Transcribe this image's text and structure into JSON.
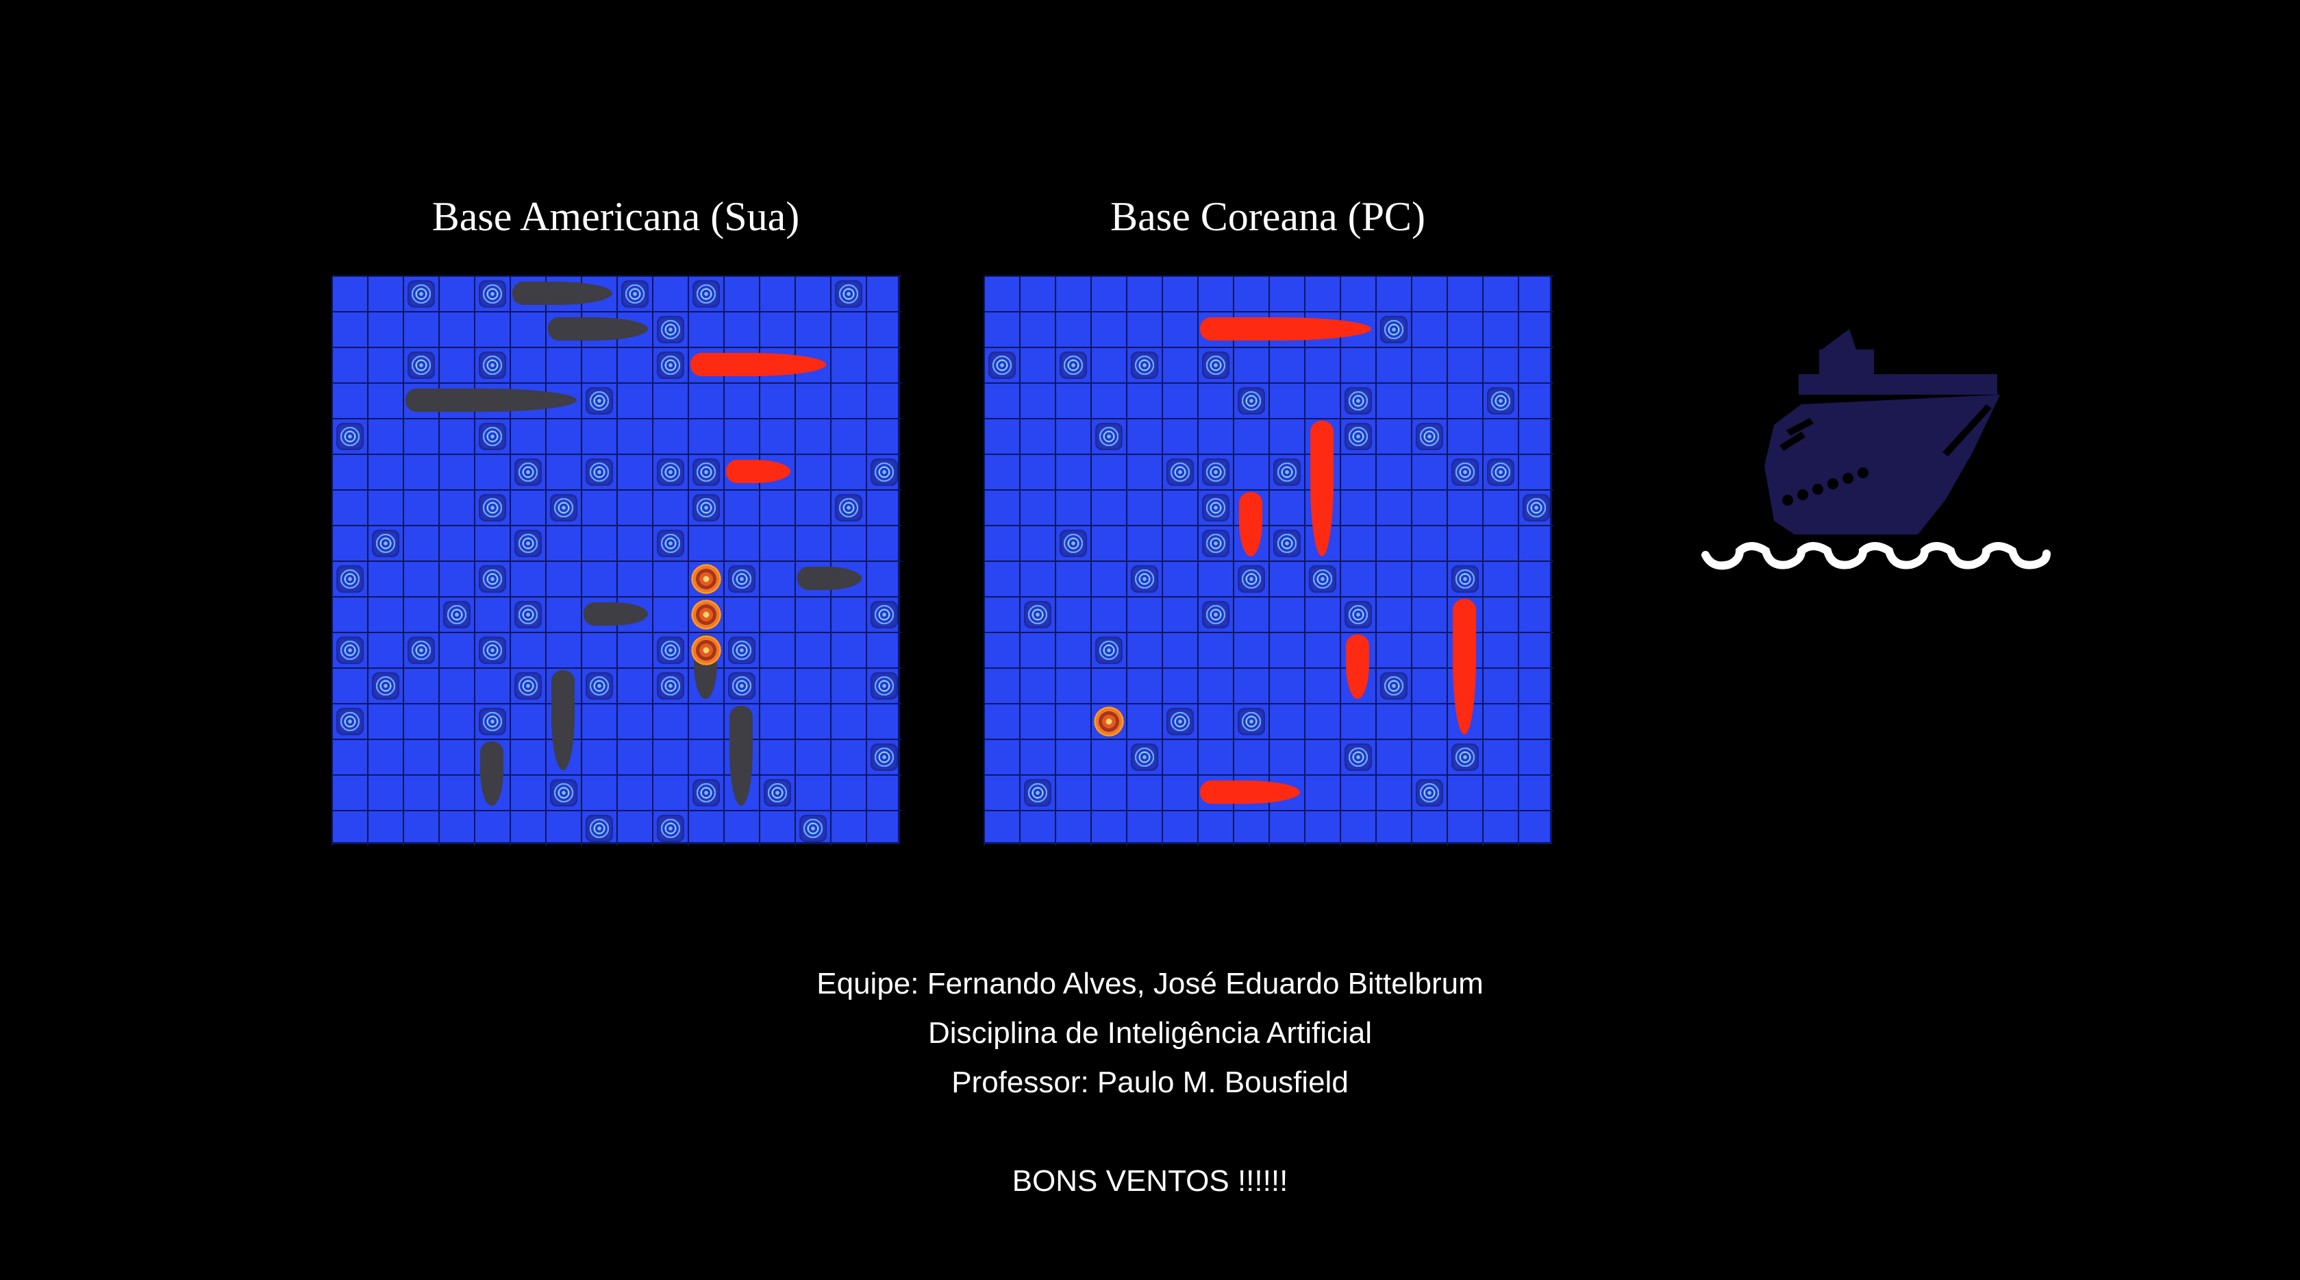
{
  "boards": [
    {
      "title": "Base Americana (Sua)",
      "misses": [
        [
          0,
          2
        ],
        [
          0,
          4
        ],
        [
          0,
          8
        ],
        [
          0,
          10
        ],
        [
          0,
          14
        ],
        [
          1,
          9
        ],
        [
          2,
          2
        ],
        [
          2,
          4
        ],
        [
          2,
          9
        ],
        [
          3,
          7
        ],
        [
          4,
          0
        ],
        [
          4,
          4
        ],
        [
          5,
          5
        ],
        [
          5,
          7
        ],
        [
          5,
          9
        ],
        [
          5,
          10
        ],
        [
          5,
          15
        ],
        [
          6,
          4
        ],
        [
          6,
          6
        ],
        [
          6,
          10
        ],
        [
          6,
          14
        ],
        [
          7,
          1
        ],
        [
          7,
          5
        ],
        [
          7,
          9
        ],
        [
          8,
          0
        ],
        [
          8,
          4
        ],
        [
          8,
          11
        ],
        [
          9,
          3
        ],
        [
          9,
          5
        ],
        [
          9,
          15
        ],
        [
          10,
          0
        ],
        [
          10,
          2
        ],
        [
          10,
          4
        ],
        [
          10,
          9
        ],
        [
          10,
          11
        ],
        [
          11,
          1
        ],
        [
          11,
          5
        ],
        [
          11,
          7
        ],
        [
          11,
          9
        ],
        [
          11,
          11
        ],
        [
          11,
          15
        ],
        [
          12,
          0
        ],
        [
          12,
          4
        ],
        [
          13,
          15
        ],
        [
          14,
          6
        ],
        [
          14,
          10
        ],
        [
          14,
          12
        ],
        [
          15,
          7
        ],
        [
          15,
          9
        ],
        [
          15,
          13
        ]
      ],
      "hits": [
        [
          8,
          10
        ],
        [
          9,
          10
        ],
        [
          10,
          10
        ]
      ],
      "ships": [
        {
          "row": 0,
          "col": 5,
          "len": 3,
          "dir": "h",
          "color": "gray"
        },
        {
          "row": 1,
          "col": 6,
          "len": 3,
          "dir": "h",
          "color": "gray"
        },
        {
          "row": 2,
          "col": 10,
          "len": 4,
          "dir": "h",
          "color": "red"
        },
        {
          "row": 3,
          "col": 2,
          "len": 5,
          "dir": "h",
          "color": "gray"
        },
        {
          "row": 5,
          "col": 11,
          "len": 2,
          "dir": "h",
          "color": "red"
        },
        {
          "row": 8,
          "col": 13,
          "len": 2,
          "dir": "h",
          "color": "gray"
        },
        {
          "row": 9,
          "col": 7,
          "len": 2,
          "dir": "h",
          "color": "gray"
        },
        {
          "row": 10,
          "col": 10,
          "len": 2,
          "dir": "v",
          "color": "gray"
        },
        {
          "row": 11,
          "col": 6,
          "len": 3,
          "dir": "v",
          "color": "gray"
        },
        {
          "row": 12,
          "col": 11,
          "len": 3,
          "dir": "v",
          "color": "gray"
        },
        {
          "row": 13,
          "col": 4,
          "len": 2,
          "dir": "v",
          "color": "gray"
        }
      ]
    },
    {
      "title": "Base Coreana (PC)",
      "misses": [
        [
          1,
          11
        ],
        [
          2,
          0
        ],
        [
          2,
          2
        ],
        [
          2,
          4
        ],
        [
          2,
          6
        ],
        [
          3,
          7
        ],
        [
          3,
          10
        ],
        [
          3,
          14
        ],
        [
          4,
          3
        ],
        [
          4,
          10
        ],
        [
          4,
          12
        ],
        [
          5,
          5
        ],
        [
          5,
          6
        ],
        [
          5,
          8
        ],
        [
          5,
          13
        ],
        [
          5,
          14
        ],
        [
          6,
          6
        ],
        [
          6,
          15
        ],
        [
          7,
          2
        ],
        [
          7,
          6
        ],
        [
          7,
          8
        ],
        [
          8,
          4
        ],
        [
          8,
          7
        ],
        [
          8,
          9
        ],
        [
          8,
          13
        ],
        [
          9,
          1
        ],
        [
          9,
          6
        ],
        [
          9,
          10
        ],
        [
          10,
          3
        ],
        [
          11,
          11
        ],
        [
          12,
          5
        ],
        [
          12,
          7
        ],
        [
          13,
          4
        ],
        [
          13,
          10
        ],
        [
          13,
          13
        ],
        [
          14,
          1
        ],
        [
          14,
          12
        ]
      ],
      "hits": [
        [
          12,
          3
        ]
      ],
      "ships": [
        {
          "row": 1,
          "col": 6,
          "len": 5,
          "dir": "h",
          "color": "red"
        },
        {
          "row": 4,
          "col": 9,
          "len": 4,
          "dir": "v",
          "color": "red"
        },
        {
          "row": 6,
          "col": 7,
          "len": 2,
          "dir": "v",
          "color": "red"
        },
        {
          "row": 9,
          "col": 13,
          "len": 4,
          "dir": "v",
          "color": "red"
        },
        {
          "row": 10,
          "col": 10,
          "len": 2,
          "dir": "v",
          "color": "red"
        },
        {
          "row": 14,
          "col": 6,
          "len": 3,
          "dir": "h",
          "color": "red"
        }
      ]
    }
  ],
  "credits": {
    "team": "Equipe: Fernando Alves, José Eduardo Bittelbrum",
    "course": "Disciplina de Inteligência Artificial",
    "professor": "Professor: Paulo M. Bousfield",
    "farewell": "BONS VENTOS !!!!!!"
  },
  "logo": {
    "icon": "cruise-ship-icon",
    "color": "#1c1850",
    "wave_color": "#ffffff"
  },
  "colors": {
    "water": "#2a45f2",
    "grid": "#0c1760",
    "ship_own": "#3e3e44",
    "ship_sunk_or_found": "#ff2a12"
  }
}
